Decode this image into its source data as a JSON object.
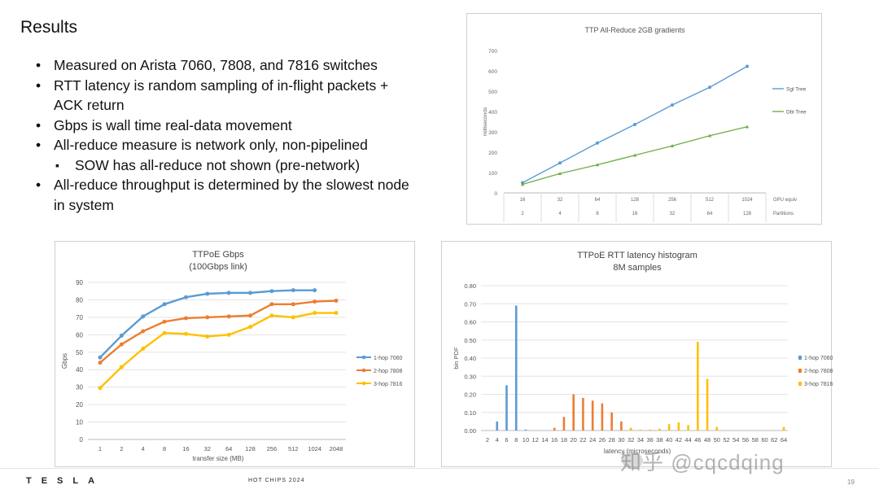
{
  "slide": {
    "title": "Results",
    "bullets": [
      "Measured on Arista 7060, 7808, and 7816 switches",
      "RTT latency is random sampling of in-flight packets + ACK return",
      "Gbps is wall time real-data movement",
      "All-reduce measure is network only, non-pipelined",
      "SOW has all-reduce not shown (pre-network)",
      "All-reduce throughput is determined by the slowest node in system"
    ],
    "footer": {
      "logo": "TESLA",
      "event": "HOT CHIPS 2024",
      "page": "19"
    },
    "watermark": "知乎 @cqcdqing"
  },
  "chart_data": [
    {
      "type": "line",
      "title": "TTP All-Reduce 2GB gradients",
      "ylabel": "milliseconds",
      "ylim": [
        0,
        700
      ],
      "yticks": [
        0,
        100,
        200,
        300,
        400,
        500,
        600,
        700
      ],
      "categories": [
        "16",
        "32",
        "64",
        "128",
        "256",
        "512",
        "1024"
      ],
      "category_rows": [
        {
          "name": "GPU equiv",
          "values": [
            "16",
            "32",
            "64",
            "128",
            "256",
            "512",
            "1024"
          ]
        },
        {
          "name": "Partitions",
          "values": [
            "2",
            "4",
            "8",
            "16",
            "32",
            "64",
            "128"
          ]
        }
      ],
      "series": [
        {
          "name": "Sgl Tree",
          "color": "#5b9bd5",
          "values": [
            50,
            147,
            245,
            336,
            432,
            519,
            622
          ]
        },
        {
          "name": "Dbl Tree",
          "color": "#70ad47",
          "values": [
            42,
            95,
            138,
            185,
            231,
            281,
            325
          ]
        }
      ],
      "legend": "right"
    },
    {
      "type": "line",
      "title": "TTPoE Gbps",
      "subtitle": "(100Gbps link)",
      "xlabel": "transfer size (MB)",
      "ylabel": "Gbps",
      "ylim": [
        0,
        90
      ],
      "yticks": [
        0,
        10,
        20,
        30,
        40,
        50,
        60,
        70,
        80,
        90
      ],
      "categories": [
        "1",
        "2",
        "4",
        "8",
        "16",
        "32",
        "64",
        "128",
        "256",
        "512",
        "1024",
        "2048"
      ],
      "series": [
        {
          "name": "1-hop 7060",
          "color": "#5b9bd5",
          "values": [
            47,
            59.5,
            70.5,
            77.5,
            81.5,
            83.5,
            84,
            84,
            85,
            85.5,
            85.5,
            null
          ]
        },
        {
          "name": "2-hop 7808",
          "color": "#ed7d31",
          "values": [
            44,
            54.5,
            62,
            67.5,
            69.5,
            70,
            70.5,
            71,
            77.5,
            77.5,
            79,
            79.5
          ]
        },
        {
          "name": "3-hop 7816",
          "color": "#ffc000",
          "values": [
            29.5,
            41.5,
            52,
            61,
            60.5,
            59,
            60,
            64.5,
            71,
            70,
            72.5,
            72.5
          ]
        }
      ],
      "legend": "right"
    },
    {
      "type": "bar",
      "title": "TTPoE RTT latency histogram",
      "subtitle": "8M samples",
      "xlabel": "latency (microseconds)",
      "ylabel": "bin PDF",
      "ylim": [
        0,
        0.8
      ],
      "yticks": [
        "0.00",
        "0.10",
        "0.20",
        "0.30",
        "0.40",
        "0.50",
        "0.60",
        "0.70",
        "0.80"
      ],
      "x_ticks": [
        2,
        4,
        6,
        8,
        10,
        12,
        14,
        16,
        18,
        20,
        22,
        24,
        26,
        28,
        30,
        32,
        34,
        36,
        38,
        40,
        42,
        44,
        46,
        48,
        50,
        52,
        54,
        56,
        58,
        60,
        62,
        64
      ],
      "series": [
        {
          "name": "1-hop 7060",
          "color": "#5b9bd5",
          "points": [
            [
              4,
              0.05
            ],
            [
              6,
              0.25
            ],
            [
              8,
              0.69
            ],
            [
              10,
              0.005
            ]
          ]
        },
        {
          "name": "2-hop 7808",
          "color": "#ed7d31",
          "points": [
            [
              16,
              0.015
            ],
            [
              18,
              0.075
            ],
            [
              20,
              0.2
            ],
            [
              22,
              0.18
            ],
            [
              24,
              0.165
            ],
            [
              26,
              0.15
            ],
            [
              28,
              0.1
            ],
            [
              30,
              0.05
            ],
            [
              32,
              0.01
            ]
          ]
        },
        {
          "name": "3-hop 7816",
          "color": "#ffc000",
          "points": [
            [
              32,
              0.015
            ],
            [
              34,
              0.005
            ],
            [
              36,
              0.005
            ],
            [
              38,
              0.01
            ],
            [
              40,
              0.035
            ],
            [
              42,
              0.045
            ],
            [
              44,
              0.03
            ],
            [
              46,
              0.49
            ],
            [
              48,
              0.285
            ],
            [
              50,
              0.02
            ],
            [
              64,
              0.02
            ]
          ]
        }
      ],
      "legend": "right"
    }
  ]
}
